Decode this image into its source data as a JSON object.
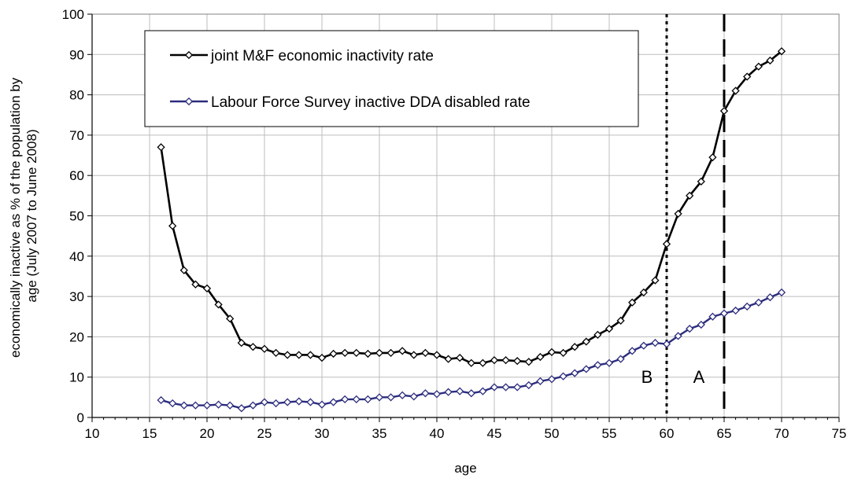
{
  "chart_data": {
    "type": "line",
    "xlabel": "age",
    "ylabel_lines": [
      "economically inactive as % of the population by",
      "age (July 2007 to June 2008)"
    ],
    "xlim": [
      10,
      75
    ],
    "ylim": [
      0,
      100
    ],
    "x_ticks": [
      "10",
      "15",
      "20",
      "25",
      "30",
      "35",
      "40",
      "45",
      "50",
      "55",
      "60",
      "65",
      "70",
      "75"
    ],
    "y_ticks": [
      "0",
      "10",
      "20",
      "30",
      "40",
      "50",
      "60",
      "70",
      "80",
      "90",
      "100"
    ],
    "grid": true,
    "legend_position": "top-left",
    "x": [
      16,
      17,
      18,
      19,
      20,
      21,
      22,
      23,
      24,
      25,
      26,
      27,
      28,
      29,
      30,
      31,
      32,
      33,
      34,
      35,
      36,
      37,
      38,
      39,
      40,
      41,
      42,
      43,
      44,
      45,
      46,
      47,
      48,
      49,
      50,
      51,
      52,
      53,
      54,
      55,
      56,
      57,
      58,
      59,
      60,
      61,
      62,
      63,
      64,
      65,
      66,
      67,
      68,
      69,
      70
    ],
    "series": [
      {
        "name": "joint M&F economic inactivity rate",
        "color": "#000000",
        "values": [
          67.0,
          47.5,
          36.5,
          33.0,
          32.0,
          28.0,
          24.5,
          18.5,
          17.5,
          17.0,
          16.0,
          15.5,
          15.5,
          15.5,
          14.8,
          15.8,
          16.0,
          16.0,
          15.8,
          16.0,
          16.0,
          16.5,
          15.5,
          16.0,
          15.5,
          14.5,
          14.8,
          13.5,
          13.5,
          14.2,
          14.2,
          14.0,
          13.8,
          15.0,
          16.2,
          16.0,
          17.5,
          18.8,
          20.5,
          22.0,
          24.0,
          28.5,
          31.0,
          34.0,
          43.0,
          50.5,
          55.0,
          58.5,
          64.5,
          76.0,
          81.0,
          84.5,
          87.0,
          88.5,
          90.8
        ]
      },
      {
        "name": "Labour Force Survey inactive  DDA disabled rate",
        "color": "#2c2c7e",
        "values": [
          4.3,
          3.5,
          3.0,
          3.0,
          3.0,
          3.2,
          3.0,
          2.3,
          3.0,
          3.8,
          3.5,
          3.8,
          4.0,
          3.8,
          3.2,
          3.8,
          4.5,
          4.5,
          4.5,
          5.0,
          5.0,
          5.5,
          5.2,
          6.0,
          5.8,
          6.3,
          6.5,
          6.0,
          6.5,
          7.5,
          7.5,
          7.5,
          8.0,
          9.0,
          9.5,
          10.2,
          11.0,
          12.0,
          13.0,
          13.5,
          14.5,
          16.5,
          17.8,
          18.5,
          18.2,
          20.2,
          22.0,
          23.0,
          25.0,
          25.8,
          26.5,
          27.5,
          28.5,
          29.8,
          31.0
        ]
      }
    ],
    "reference_lines": [
      {
        "x": 60,
        "style": "dotted",
        "label": "B"
      },
      {
        "x": 65,
        "style": "dashed",
        "label": "A"
      }
    ]
  }
}
